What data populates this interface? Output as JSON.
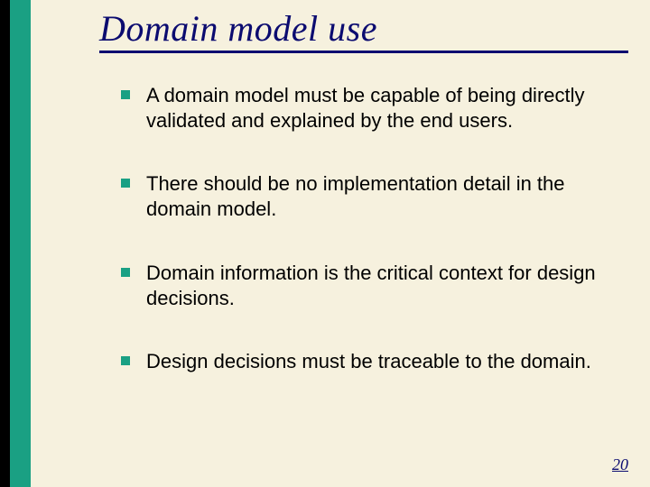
{
  "slide": {
    "title": "Domain model use",
    "title_color": "#0b0b70",
    "title_fontsize": 40,
    "title_underline_color": "#0b0b70",
    "background_color": "#f6f1de",
    "sidebar": {
      "black_width": 11,
      "black_color": "#000000",
      "teal_width": 23,
      "teal_color": "#1aa083"
    },
    "bullets": {
      "marker_color": "#1aa083",
      "text_color": "#000000",
      "fontsize": 22,
      "items": [
        {
          "text": "A domain model must be capable of being directly validated and explained by the end users."
        },
        {
          "text": "There should be no implementation detail in the domain model."
        },
        {
          "text": "Domain information is the critical context for design decisions."
        },
        {
          "text": "Design decisions must be traceable to the domain."
        }
      ]
    },
    "page_number": "20",
    "page_number_color": "#0b0b70"
  }
}
